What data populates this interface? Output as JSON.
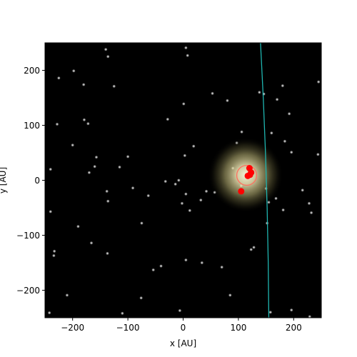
{
  "chart_data": {
    "type": "scatter",
    "title": "",
    "xlabel": "x [AU]",
    "ylabel": "y [AU]",
    "xlim": [
      -250,
      250
    ],
    "ylim": [
      -250,
      250
    ],
    "xticks": [
      -200,
      -100,
      0,
      100,
      200
    ],
    "yticks": [
      -200,
      -100,
      0,
      100,
      200
    ],
    "xtick_labels": [
      "−200",
      "−100",
      "0",
      "100",
      "200"
    ],
    "ytick_labels": [
      "−200",
      "−100",
      "0",
      "100",
      "200"
    ],
    "grid": false,
    "legend": "none",
    "colors": {
      "background": "#000000",
      "points": "#ff0000",
      "orbit": "#ff7060",
      "trajectory": "#1fb5b0",
      "glow": "#fff6c8"
    },
    "glow": {
      "center": [
        113,
        10
      ],
      "radius": 68
    },
    "orbit": {
      "center": [
        115,
        9
      ],
      "radius": 18
    },
    "points": [
      {
        "x": 120,
        "y": 22
      },
      {
        "x": 117,
        "y": 8
      },
      {
        "x": 121,
        "y": 10
      },
      {
        "x": 123,
        "y": 14
      },
      {
        "x": 105,
        "y": -20
      }
    ],
    "trajectory": [
      {
        "x": 140,
        "y": 250
      },
      {
        "x": 145,
        "y": 150
      },
      {
        "x": 149,
        "y": 50
      },
      {
        "x": 152,
        "y": -50
      },
      {
        "x": 154,
        "y": -150
      },
      {
        "x": 155,
        "y": -250
      }
    ],
    "stars": [
      [
        -140,
        238
      ],
      [
        -136,
        225
      ],
      [
        5,
        241
      ],
      [
        8,
        227
      ],
      [
        -198,
        199
      ],
      [
        -180,
        174
      ],
      [
        -225,
        186
      ],
      [
        -125,
        171
      ],
      [
        53,
        158
      ],
      [
        80,
        145
      ],
      [
        138,
        160
      ],
      [
        146,
        157
      ],
      [
        170,
        147
      ],
      [
        180,
        172
      ],
      [
        192,
        121
      ],
      [
        245,
        179
      ],
      [
        1,
        139
      ],
      [
        -228,
        102
      ],
      [
        -179,
        110
      ],
      [
        -172,
        103
      ],
      [
        -200,
        64
      ],
      [
        -157,
        42
      ],
      [
        -160,
        25
      ],
      [
        -170,
        14
      ],
      [
        -115,
        24
      ],
      [
        -100,
        43
      ],
      [
        -28,
        111
      ],
      [
        19,
        62
      ],
      [
        3,
        45
      ],
      [
        106,
        88
      ],
      [
        97,
        68
      ],
      [
        160,
        86
      ],
      [
        184,
        71
      ],
      [
        196,
        51
      ],
      [
        244,
        47
      ],
      [
        -240,
        20
      ],
      [
        -138,
        -20
      ],
      [
        -136,
        -38
      ],
      [
        -91,
        -14
      ],
      [
        -63,
        -28
      ],
      [
        -32,
        -2
      ],
      [
        -14,
        -7
      ],
      [
        -8,
        0
      ],
      [
        5,
        -25
      ],
      [
        -2,
        -42
      ],
      [
        12,
        -55
      ],
      [
        32,
        -36
      ],
      [
        42,
        -20
      ],
      [
        57,
        -22
      ],
      [
        90,
        22
      ],
      [
        105,
        -10
      ],
      [
        150,
        -15
      ],
      [
        155,
        -40
      ],
      [
        152,
        -78
      ],
      [
        168,
        -33
      ],
      [
        181,
        -54
      ],
      [
        216,
        -18
      ],
      [
        228,
        -42
      ],
      [
        232,
        -59
      ],
      [
        -240,
        -57
      ],
      [
        -190,
        -84
      ],
      [
        -166,
        -114
      ],
      [
        -137,
        -133
      ],
      [
        -233,
        -129
      ],
      [
        -234,
        -137
      ],
      [
        -75,
        -78
      ],
      [
        -40,
        -156
      ],
      [
        -54,
        -163
      ],
      [
        5,
        -145
      ],
      [
        34,
        -150
      ],
      [
        70,
        -158
      ],
      [
        -210,
        -209
      ],
      [
        -76,
        -214
      ],
      [
        -110,
        -242
      ],
      [
        -6,
        -237
      ],
      [
        85,
        -209
      ],
      [
        128,
        -122
      ],
      [
        123,
        -126
      ],
      [
        158,
        -240
      ],
      [
        196,
        -236
      ],
      [
        229,
        -248
      ],
      [
        -242,
        -241
      ]
    ]
  }
}
